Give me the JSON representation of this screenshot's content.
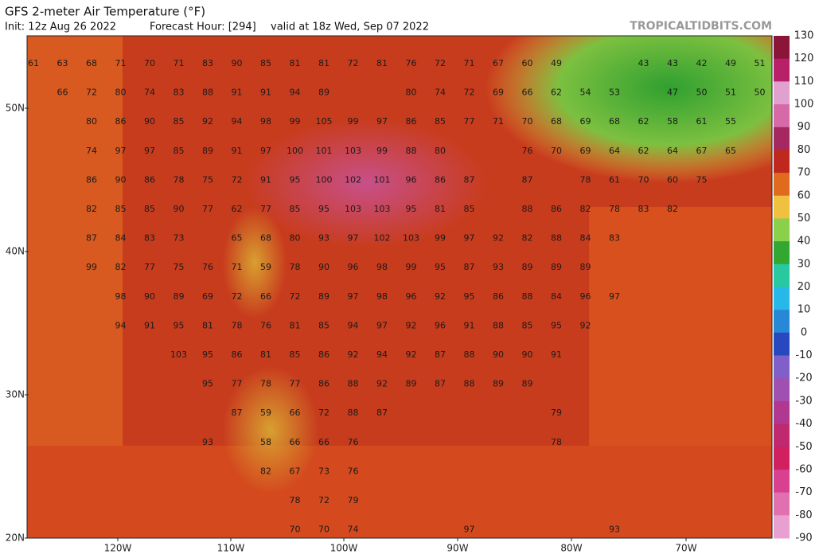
{
  "header": {
    "title": "GFS 2-meter Air Temperature (°F)",
    "init": "Init: 12z Aug 26 2022",
    "forecast_hour": "Forecast Hour: [294]",
    "valid": "valid at 18z Wed, Sep 07 2022",
    "source": "TROPICALTIDBITS.COM"
  },
  "axes": {
    "lat_labels": [
      "50N",
      "40N",
      "30N",
      "20N"
    ],
    "lon_labels": [
      "120W",
      "110W",
      "100W",
      "90W",
      "80W",
      "70W"
    ]
  },
  "colorbar": {
    "ticks": [
      130,
      120,
      110,
      100,
      90,
      80,
      70,
      60,
      50,
      40,
      30,
      20,
      10,
      0,
      -10,
      -20,
      -30,
      -40,
      -50,
      -60,
      -70,
      -80,
      -90
    ],
    "colors": [
      "#8a1538",
      "#b8206a",
      "#e0a0d0",
      "#d66aa8",
      "#a52860",
      "#c0281e",
      "#e06a1e",
      "#f0c040",
      "#8ad04a",
      "#32a832",
      "#28c8a0",
      "#28b8e8",
      "#2888d8",
      "#2848c0",
      "#8060c8",
      "#a050b0",
      "#b03890",
      "#c02870",
      "#d02060",
      "#d84090",
      "#e070b0",
      "#e8a0d0"
    ]
  },
  "map_labels": {
    "rows": [
      [
        61,
        63,
        68,
        71,
        70,
        71,
        83,
        90,
        85,
        81,
        81,
        72,
        81,
        76,
        72,
        71,
        67,
        60,
        49,
        null,
        null,
        43,
        43,
        42,
        49,
        51
      ],
      [
        null,
        66,
        72,
        80,
        74,
        83,
        88,
        91,
        91,
        94,
        89,
        null,
        null,
        80,
        74,
        72,
        69,
        66,
        62,
        54,
        53,
        null,
        47,
        50,
        51,
        50
      ],
      [
        null,
        null,
        80,
        86,
        90,
        85,
        92,
        94,
        98,
        99,
        105,
        99,
        97,
        86,
        85,
        77,
        71,
        70,
        68,
        69,
        68,
        62,
        58,
        61,
        55
      ],
      [
        null,
        null,
        74,
        97,
        97,
        85,
        89,
        91,
        97,
        100,
        101,
        103,
        99,
        88,
        80,
        null,
        null,
        76,
        70,
        69,
        64,
        62,
        64,
        67,
        65
      ],
      [
        null,
        null,
        86,
        90,
        86,
        78,
        75,
        72,
        91,
        95,
        100,
        102,
        101,
        96,
        86,
        87,
        null,
        87,
        null,
        78,
        61,
        70,
        60,
        75
      ],
      [
        null,
        null,
        82,
        85,
        85,
        90,
        77,
        62,
        77,
        85,
        95,
        103,
        103,
        95,
        81,
        85,
        null,
        88,
        86,
        82,
        78,
        83,
        82
      ],
      [
        null,
        null,
        87,
        84,
        83,
        73,
        null,
        65,
        68,
        80,
        93,
        97,
        102,
        103,
        99,
        97,
        92,
        82,
        88,
        84,
        83
      ],
      [
        null,
        null,
        99,
        82,
        77,
        75,
        76,
        71,
        59,
        78,
        90,
        96,
        98,
        99,
        95,
        87,
        93,
        89,
        89,
        89
      ],
      [
        null,
        null,
        null,
        98,
        90,
        89,
        69,
        72,
        66,
        72,
        89,
        97,
        98,
        96,
        92,
        95,
        86,
        88,
        84,
        96,
        97
      ],
      [
        null,
        null,
        null,
        94,
        91,
        95,
        81,
        78,
        76,
        81,
        85,
        94,
        97,
        92,
        96,
        91,
        88,
        85,
        95,
        92
      ],
      [
        null,
        null,
        null,
        null,
        null,
        103,
        95,
        86,
        81,
        85,
        86,
        92,
        94,
        92,
        87,
        88,
        90,
        90,
        91
      ],
      [
        null,
        null,
        null,
        null,
        null,
        null,
        95,
        77,
        78,
        77,
        86,
        88,
        92,
        89,
        87,
        88,
        89,
        89
      ],
      [
        null,
        null,
        null,
        null,
        null,
        null,
        null,
        87,
        59,
        66,
        72,
        88,
        87,
        null,
        null,
        null,
        null,
        null,
        79
      ],
      [
        null,
        null,
        null,
        null,
        null,
        null,
        93,
        null,
        58,
        66,
        66,
        76,
        null,
        null,
        null,
        null,
        null,
        null,
        78
      ],
      [
        null,
        null,
        null,
        null,
        null,
        null,
        null,
        null,
        82,
        67,
        73,
        76
      ],
      [
        null,
        null,
        null,
        null,
        null,
        null,
        null,
        null,
        null,
        78,
        72,
        79
      ],
      [
        null,
        null,
        null,
        null,
        null,
        null,
        null,
        null,
        null,
        70,
        70,
        74,
        null,
        null,
        null,
        97,
        null,
        null,
        null,
        null,
        93
      ]
    ]
  }
}
